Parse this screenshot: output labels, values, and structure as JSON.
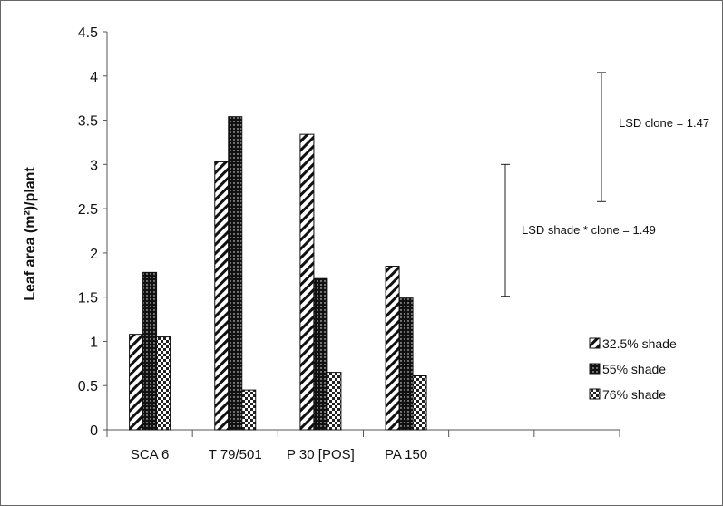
{
  "chart_data": {
    "type": "bar",
    "categories": [
      "SCA 6",
      "T 79/501",
      "P 30 [POS]",
      "PA 150"
    ],
    "empty_category_slots": 2,
    "series": [
      {
        "name": "32.5% shade",
        "pattern": "diagonal-hatch",
        "values": [
          1.08,
          3.03,
          3.34,
          1.85
        ]
      },
      {
        "name": "55% shade",
        "pattern": "dark-dots",
        "values": [
          1.78,
          3.54,
          1.71,
          1.49
        ]
      },
      {
        "name": "76% shade",
        "pattern": "checker",
        "values": [
          1.05,
          0.45,
          0.65,
          0.61
        ]
      }
    ],
    "ylabel": "Leaf area (m²)/plant",
    "xlabel": "",
    "ylim": [
      0,
      4.5
    ],
    "yticks": [
      "0",
      "0.5",
      "1",
      "1.5",
      "2",
      "2.5",
      "3",
      "3.5",
      "4",
      "4.5"
    ],
    "grid": false,
    "legend_position": "right",
    "annotations": [
      {
        "text": "LSD clone = 1.47",
        "error_bar": [
          2.58,
          4.04
        ]
      },
      {
        "text": "LSD  shade * clone = 1.49",
        "error_bar": [
          1.51,
          3.0
        ]
      }
    ],
    "colors": {
      "bar_ink": "#111111",
      "bar_fill": "#ffffff",
      "axis": "#555555"
    }
  }
}
